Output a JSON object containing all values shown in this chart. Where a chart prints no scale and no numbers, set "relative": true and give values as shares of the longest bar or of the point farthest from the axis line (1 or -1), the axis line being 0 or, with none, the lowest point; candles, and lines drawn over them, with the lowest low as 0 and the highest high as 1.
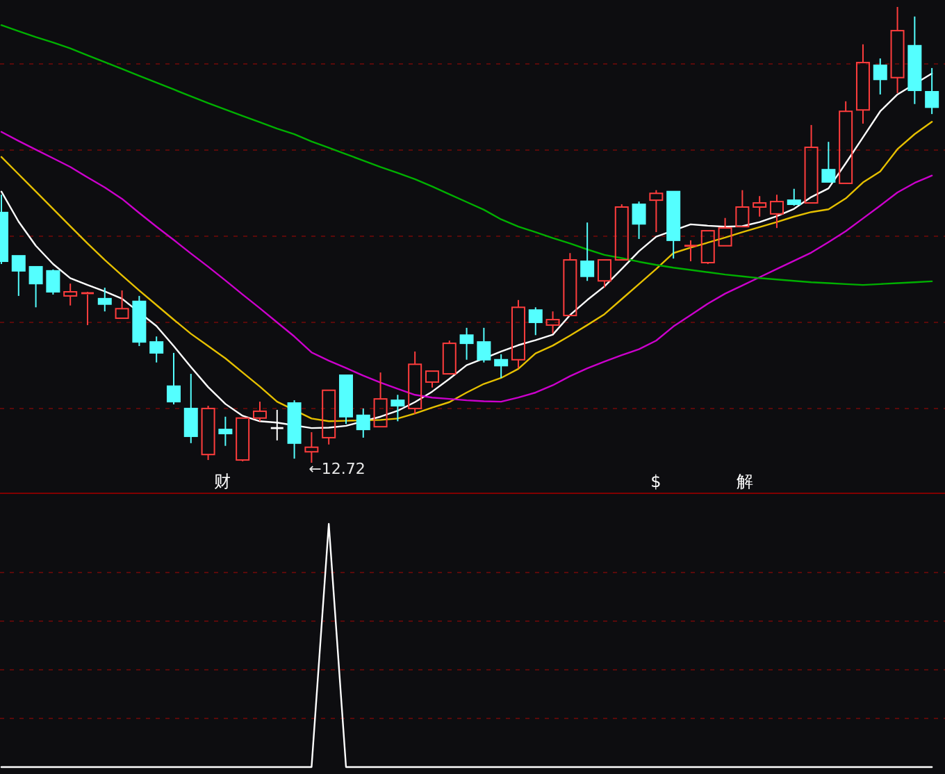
{
  "chart_data": [
    {
      "type": "candlestick",
      "relative": true,
      "ref_lines": [
        {
          "axis": "y",
          "value": 0.875,
          "color": "#5a0a0a",
          "line_style": "dashed"
        },
        {
          "axis": "y",
          "value": 0.686,
          "color": "#5a0a0a",
          "line_style": "dashed"
        },
        {
          "axis": "y",
          "value": 0.497,
          "color": "#5a0a0a",
          "line_style": "dashed"
        },
        {
          "axis": "y",
          "value": 0.308,
          "color": "#5a0a0a",
          "line_style": "dashed"
        },
        {
          "axis": "y",
          "value": 0.119,
          "color": "#5a0a0a",
          "line_style": "dashed"
        }
      ],
      "categories": [
        null,
        null,
        null,
        null,
        null,
        null,
        null,
        null,
        null,
        null,
        null,
        null,
        null,
        null,
        null,
        null,
        null,
        null,
        null,
        null,
        null,
        null,
        null,
        null,
        null,
        null,
        null,
        null,
        null,
        null,
        null,
        null,
        null,
        null,
        null,
        null,
        null,
        null,
        null,
        null,
        null,
        null,
        null,
        null,
        null,
        null,
        null,
        null,
        null,
        null,
        null,
        null,
        null,
        null,
        null
      ],
      "ohlc": [
        [
          0.549,
          0.588,
          0.436,
          0.442
        ],
        [
          0.454,
          0.454,
          0.366,
          0.421
        ],
        [
          0.43,
          0.43,
          0.341,
          0.393
        ],
        [
          0.421,
          0.424,
          0.369,
          0.375
        ],
        [
          0.366,
          0.393,
          0.345,
          0.375
        ],
        [
          0.369,
          0.375,
          0.302,
          0.372
        ],
        [
          0.36,
          0.384,
          0.332,
          0.348
        ],
        [
          0.317,
          0.378,
          0.317,
          0.338
        ],
        [
          0.354,
          0.366,
          0.256,
          0.265
        ],
        [
          0.265,
          0.277,
          0.22,
          0.241
        ],
        [
          0.168,
          0.241,
          0.128,
          0.134
        ],
        [
          0.119,
          0.195,
          0.043,
          0.058
        ],
        [
          0.018,
          0.125,
          0.006,
          0.119
        ],
        [
          0.073,
          0.101,
          0.037,
          0.064
        ],
        [
          0.006,
          0.098,
          0.003,
          0.098
        ],
        [
          0.098,
          0.134,
          0.091,
          0.113
        ],
        [
          0.076,
          0.116,
          0.049,
          0.076
        ],
        [
          0.131,
          0.137,
          0.009,
          0.043
        ],
        [
          0.024,
          0.067,
          0,
          0.034
        ],
        [
          0.055,
          0.159,
          0.04,
          0.159
        ],
        [
          0.192,
          0.192,
          0.085,
          0.101
        ],
        [
          0.104,
          0.119,
          0.055,
          0.073
        ],
        [
          0.079,
          0.198,
          0.079,
          0.14
        ],
        [
          0.137,
          0.149,
          0.091,
          0.125
        ],
        [
          0.119,
          0.244,
          0.107,
          0.216
        ],
        [
          0.177,
          0.201,
          0.165,
          0.201
        ],
        [
          0.195,
          0.268,
          0.195,
          0.262
        ],
        [
          0.28,
          0.296,
          0.226,
          0.262
        ],
        [
          0.265,
          0.296,
          0.22,
          0.226
        ],
        [
          0.226,
          0.238,
          0.186,
          0.213
        ],
        [
          0.226,
          0.357,
          0.207,
          0.341
        ],
        [
          0.335,
          0.341,
          0.28,
          0.308
        ],
        [
          0.302,
          0.332,
          0.284,
          0.314
        ],
        [
          0.323,
          0.46,
          0.323,
          0.445
        ],
        [
          0.442,
          0.527,
          0.399,
          0.409
        ],
        [
          0.399,
          0.445,
          0.384,
          0.445
        ],
        [
          0.445,
          0.567,
          0.445,
          0.561
        ],
        [
          0.567,
          0.573,
          0.491,
          0.524
        ],
        [
          0.576,
          0.598,
          0.506,
          0.591
        ],
        [
          0.595,
          0.595,
          0.448,
          0.488
        ],
        [
          0.473,
          0.488,
          0.442,
          0.476
        ],
        [
          0.439,
          0.509,
          0.436,
          0.509
        ],
        [
          0.476,
          0.537,
          0.476,
          0.515
        ],
        [
          0.518,
          0.598,
          0.518,
          0.561
        ],
        [
          0.561,
          0.585,
          0.54,
          0.57
        ],
        [
          0.546,
          0.588,
          0.515,
          0.573
        ],
        [
          0.576,
          0.601,
          0.564,
          0.567
        ],
        [
          0.57,
          0.741,
          0.57,
          0.692
        ],
        [
          0.643,
          0.704,
          0.616,
          0.616
        ],
        [
          0.613,
          0.793,
          0.613,
          0.771
        ],
        [
          0.774,
          0.918,
          0.744,
          0.878
        ],
        [
          0.872,
          0.887,
          0.808,
          0.841
        ],
        [
          0.845,
          1,
          0.811,
          0.948
        ],
        [
          0.915,
          0.979,
          0.787,
          0.817
        ],
        [
          0.814,
          0.866,
          0.765,
          0.78
        ]
      ],
      "colors": [
        "#54ffff",
        "#54ffff",
        "#54ffff",
        "#54ffff",
        "#ff3d3d",
        "#ff3d3d",
        "#54ffff",
        "#ff3d3d",
        "#54ffff",
        "#54ffff",
        "#54ffff",
        "#54ffff",
        "#ff3d3d",
        "#54ffff",
        "#ff3d3d",
        "#ff3d3d",
        "#ffffff",
        "#54ffff",
        "#ff3d3d",
        "#ff3d3d",
        "#54ffff",
        "#54ffff",
        "#ff3d3d",
        "#54ffff",
        "#ff3d3d",
        "#ff3d3d",
        "#ff3d3d",
        "#54ffff",
        "#54ffff",
        "#54ffff",
        "#ff3d3d",
        "#54ffff",
        "#ff3d3d",
        "#ff3d3d",
        "#54ffff",
        "#ff3d3d",
        "#ff3d3d",
        "#54ffff",
        "#ff3d3d",
        "#54ffff",
        "#ff3d3d",
        "#ff3d3d",
        "#ff3d3d",
        "#ff3d3d",
        "#ff3d3d",
        "#ff3d3d",
        "#54ffff",
        "#ff3d3d",
        "#54ffff",
        "#ff3d3d",
        "#ff3d3d",
        "#54ffff",
        "#ff3d3d",
        "#54ffff",
        "#54ffff"
      ],
      "series": [
        {
          "type": "line",
          "color": "#ffffff",
          "values": [
            0.595,
            0.529,
            0.476,
            0.436,
            0.405,
            0.39,
            0.376,
            0.36,
            null,
            0.3,
            0.256,
            0.21,
            0.166,
            0.129,
            0.103,
            0.091,
            0.088,
            null,
            0.076,
            0.077,
            0.081,
            null,
            0.101,
            0.114,
            0.133,
            0.156,
            0.184,
            0.214,
            0.229,
            0.244,
            0.258,
            0.269,
            0.281,
            0.324,
            0.357,
            0.387,
            0.425,
            0.464,
            0.496,
            null,
            0.523,
            0.52,
            0.518,
            0.519,
            0.528,
            0.541,
            0.557,
            0.583,
            0.602,
            0.657,
            0.714,
            0.771,
            0.808,
            null,
            0.854
          ]
        },
        {
          "type": "line",
          "color": "#e6c000",
          "values": [
            0.671,
            0.633,
            0.595,
            0.557,
            0.519,
            0.481,
            0.445,
            0.411,
            0.378,
            0.346,
            0.314,
            0.283,
            0.256,
            0.229,
            0.198,
            0.167,
            0.134,
            null,
            0.097,
            0.091,
            0.092,
            null,
            0.094,
            0.097,
            0.108,
            0.121,
            0.133,
            0.154,
            0.173,
            0.186,
            0.206,
            0.24,
            0.257,
            0.279,
            0.302,
            0.326,
            0.359,
            0.392,
            0.425,
            0.46,
            0.472,
            0.483,
            0.494,
            0.506,
            0.517,
            0.528,
            0.54,
            0.55,
            0.556,
            0.58,
            0.615,
            0.639,
            0.688,
            0.721,
            0.748
          ]
        },
        {
          "type": "line",
          "color": "#cc00cc",
          "values": [
            0.726,
            0.706,
            0.687,
            0.668,
            0.649,
            0.626,
            0.604,
            0.579,
            0.548,
            0.518,
            0.489,
            0.459,
            0.43,
            0.4,
            0.369,
            0.339,
            0.308,
            0.277,
            0.242,
            0.224,
            0.208,
            0.191,
            0.176,
            0.162,
            0.149,
            0.143,
            0.14,
            0.137,
            0.135,
            0.134,
            0.143,
            0.154,
            0.17,
            0.19,
            0.207,
            0.222,
            0.236,
            0.249,
            0.268,
            0.299,
            0.324,
            0.349,
            0.371,
            0.389,
            0.407,
            0.425,
            0.443,
            0.461,
            0.484,
            0.508,
            0.536,
            0.564,
            0.593,
            0.614,
            0.63
          ]
        },
        {
          "type": "line",
          "color": "#00b000",
          "values": [
            0.96,
            0.947,
            0.934,
            0.922,
            0.909,
            0.894,
            0.879,
            0.864,
            0.849,
            0.834,
            0.819,
            0.804,
            0.789,
            0.775,
            0.761,
            0.747,
            0.733,
            0.721,
            0.705,
            0.691,
            0.677,
            0.663,
            0.649,
            0.636,
            0.622,
            0.606,
            0.589,
            0.572,
            0.555,
            0.534,
            0.518,
            0.506,
            0.493,
            0.481,
            0.468,
            0.456,
            0.449,
            0.441,
            0.434,
            0.428,
            0.423,
            0.418,
            0.413,
            0.409,
            0.405,
            0.402,
            0.399,
            0.396,
            0.394,
            0.392,
            0.39,
            0.392,
            0.394,
            0.396,
            0.398
          ]
        }
      ],
      "annotations": [
        "←12.72",
        "财",
        "$",
        "解"
      ]
    },
    {
      "type": "line",
      "relative": true,
      "ref_lines": [
        {
          "axis": "y",
          "value": 0.8,
          "color": "#5a0a0a",
          "line_style": "dashed"
        },
        {
          "axis": "y",
          "value": 0.6,
          "color": "#5a0a0a",
          "line_style": "dashed"
        },
        {
          "axis": "y",
          "value": 0.4,
          "color": "#5a0a0a",
          "line_style": "dashed"
        },
        {
          "axis": "y",
          "value": 0.2,
          "color": "#5a0a0a",
          "line_style": "dashed"
        }
      ],
      "categories": [
        null,
        null,
        null,
        null,
        null,
        null,
        null,
        null,
        null,
        null,
        null,
        null,
        null,
        null,
        null,
        null,
        null,
        null,
        null,
        null,
        null,
        null,
        null,
        null,
        null,
        null,
        null,
        null,
        null,
        null,
        null,
        null,
        null,
        null,
        null,
        null,
        null,
        null,
        null,
        null,
        null,
        null,
        null,
        null,
        null,
        null,
        null,
        null,
        null,
        null,
        null,
        null,
        null,
        null,
        null
      ],
      "series": [
        {
          "color": "#ffffff",
          "values": [
            0,
            0,
            0,
            0,
            0,
            0,
            0,
            0,
            0,
            0,
            0,
            0,
            0,
            0,
            0,
            0,
            0,
            0,
            0,
            1,
            0,
            0,
            0,
            0,
            0,
            0,
            0,
            0,
            0,
            0,
            0,
            0,
            0,
            0,
            0,
            0,
            0,
            0,
            0,
            0,
            0,
            0,
            0,
            0,
            0,
            0,
            0,
            0,
            0,
            0,
            0,
            0,
            0,
            0,
            0
          ]
        }
      ]
    }
  ]
}
